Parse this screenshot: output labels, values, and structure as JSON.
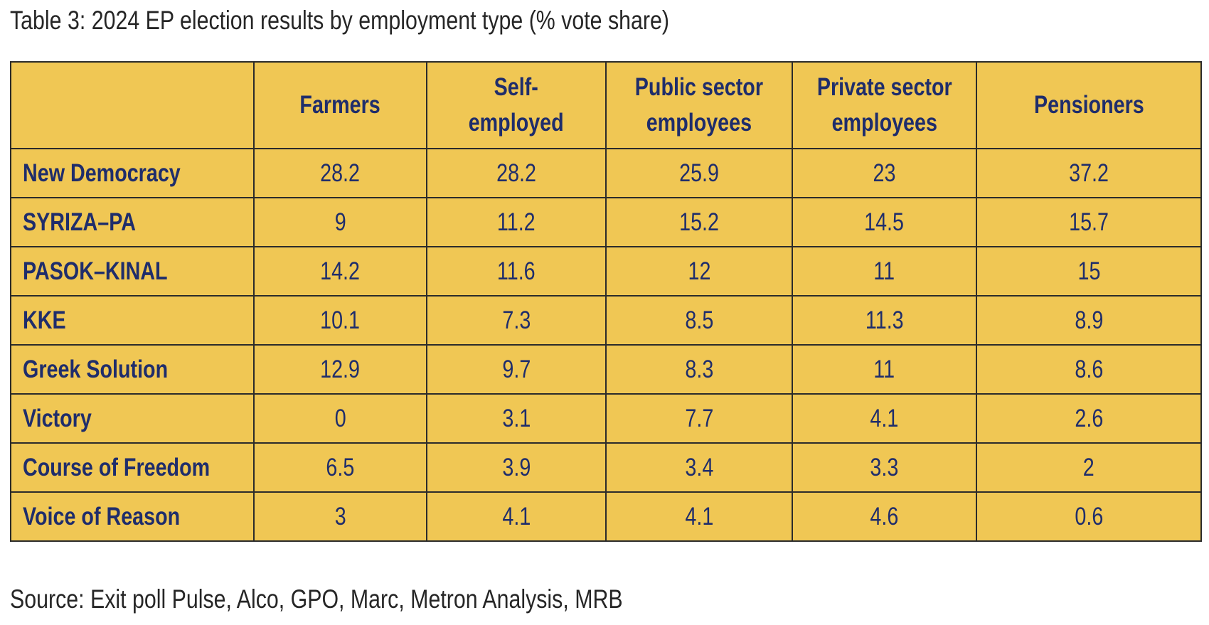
{
  "caption": "Table 3: 2024 EP election results by employment type (% vote share)",
  "table": {
    "corner": "",
    "columns": [
      "Farmers",
      "Self-\nemployed",
      "Public sector\nemployees",
      "Private sector\nemployees",
      "Pensioners"
    ],
    "rows": [
      {
        "party": "New Democracy",
        "values": [
          "28.2",
          "28.2",
          "25.9",
          "23",
          "37.2"
        ]
      },
      {
        "party": "SYRIZA–PA",
        "values": [
          "9",
          "11.2",
          "15.2",
          "14.5",
          "15.7"
        ]
      },
      {
        "party": "PASOK–KINAL",
        "values": [
          "14.2",
          "11.6",
          "12",
          "11",
          "15"
        ]
      },
      {
        "party": "KKE",
        "values": [
          "10.1",
          "7.3",
          "8.5",
          "11.3",
          "8.9"
        ]
      },
      {
        "party": "Greek Solution",
        "values": [
          "12.9",
          "9.7",
          "8.3",
          "11",
          "8.6"
        ]
      },
      {
        "party": "Victory",
        "values": [
          "0",
          "3.1",
          "7.7",
          "4.1",
          "2.6"
        ]
      },
      {
        "party": "Course of Freedom",
        "values": [
          "6.5",
          "3.9",
          "3.4",
          "3.3",
          "2"
        ]
      },
      {
        "party": "Voice of Reason",
        "values": [
          "3",
          "4.1",
          "4.1",
          "4.6",
          "0.6"
        ]
      }
    ]
  },
  "source": "Source: Exit poll Pulse, Alco, GPO, Marc, Metron Analysis, MRB",
  "colors": {
    "cell_background": "#f0c754",
    "header_text": "#1f2d6b",
    "border": "#2b2b2b"
  }
}
